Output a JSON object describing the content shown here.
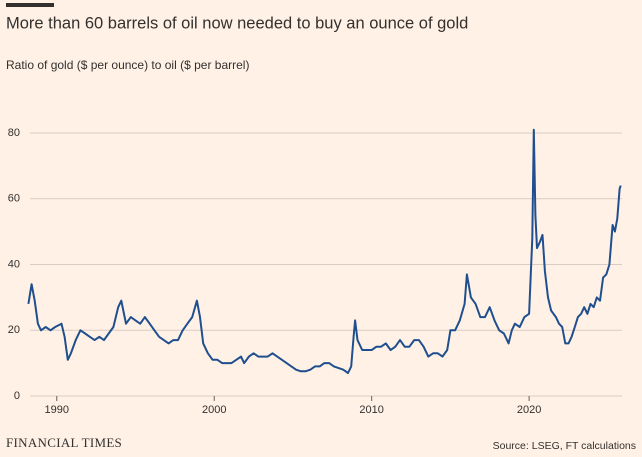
{
  "chart_data": {
    "type": "line",
    "title": "More than 60 barrels of oil now needed to buy an ounce of gold",
    "subtitle": "Ratio of gold ($ per ounce) to oil ($ per barrel)",
    "color": "#1f4f8f",
    "x": [
      1988.2,
      1988.4,
      1988.6,
      1988.8,
      1989.0,
      1989.3,
      1989.6,
      1989.9,
      1990.3,
      1990.5,
      1990.7,
      1990.9,
      1991.2,
      1991.5,
      1991.8,
      1992.1,
      1992.4,
      1992.7,
      1993.0,
      1993.3,
      1993.6,
      1993.9,
      1994.1,
      1994.4,
      1994.7,
      1995.0,
      1995.3,
      1995.6,
      1995.9,
      1996.2,
      1996.5,
      1996.8,
      1997.1,
      1997.4,
      1997.7,
      1998.0,
      1998.3,
      1998.6,
      1998.9,
      1999.1,
      1999.3,
      1999.6,
      1999.9,
      2000.2,
      2000.5,
      2000.8,
      2001.1,
      2001.4,
      2001.7,
      2001.9,
      2002.2,
      2002.5,
      2002.8,
      2003.1,
      2003.4,
      2003.7,
      2004.0,
      2004.3,
      2004.6,
      2004.9,
      2005.2,
      2005.5,
      2005.8,
      2006.1,
      2006.4,
      2006.7,
      2007.0,
      2007.3,
      2007.6,
      2007.9,
      2008.2,
      2008.5,
      2008.7,
      2008.85,
      2008.95,
      2009.1,
      2009.4,
      2009.7,
      2010.0,
      2010.3,
      2010.6,
      2010.9,
      2011.2,
      2011.5,
      2011.8,
      2012.1,
      2012.4,
      2012.7,
      2013.0,
      2013.3,
      2013.6,
      2013.9,
      2014.2,
      2014.5,
      2014.8,
      2015.0,
      2015.3,
      2015.6,
      2015.9,
      2016.05,
      2016.3,
      2016.6,
      2016.9,
      2017.2,
      2017.5,
      2017.8,
      2018.1,
      2018.4,
      2018.7,
      2018.9,
      2019.1,
      2019.4,
      2019.7,
      2020.0,
      2020.2,
      2020.3,
      2020.4,
      2020.5,
      2020.7,
      2020.85,
      2021.0,
      2021.2,
      2021.4,
      2021.7,
      2021.9,
      2022.1,
      2022.3,
      2022.5,
      2022.7,
      2022.9,
      2023.1,
      2023.3,
      2023.5,
      2023.7,
      2023.9,
      2024.1,
      2024.3,
      2024.5,
      2024.7,
      2024.9,
      2025.1,
      2025.3,
      2025.45,
      2025.6,
      2025.75,
      2025.82
    ],
    "values": [
      28,
      34,
      29,
      22,
      20,
      21,
      20,
      21,
      22,
      18,
      11,
      13,
      17,
      20,
      19,
      18,
      17,
      18,
      17,
      19,
      21,
      27,
      29,
      22,
      24,
      23,
      22,
      24,
      22,
      20,
      18,
      17,
      16,
      17,
      17,
      20,
      22,
      24,
      29,
      24,
      16,
      13,
      11,
      11,
      10,
      10,
      10,
      11,
      12,
      10,
      12,
      13,
      12,
      12,
      12,
      13,
      12,
      11,
      10,
      9,
      8,
      7.5,
      7.5,
      8,
      9,
      9,
      10,
      10,
      9,
      8.5,
      8,
      7,
      9,
      18,
      23,
      17,
      14,
      14,
      14,
      15,
      15,
      16,
      14,
      15,
      17,
      15,
      15,
      17,
      17,
      15,
      12,
      13,
      13,
      12,
      14,
      20,
      20,
      23,
      28,
      37,
      30,
      28,
      24,
      24,
      27,
      23,
      20,
      19,
      16,
      20,
      22,
      21,
      24,
      25,
      48,
      81,
      55,
      45,
      47,
      49,
      38,
      30,
      26,
      24,
      22,
      21,
      16,
      16,
      18,
      21,
      24,
      25,
      27,
      25,
      28,
      27,
      30,
      29,
      36,
      37,
      40,
      52,
      50,
      54,
      63,
      64
    ],
    "xlim": [
      1988.3,
      2025.9
    ],
    "xticks": [
      1990,
      2000,
      2010,
      2020
    ],
    "ylim": [
      0,
      80
    ],
    "yticks": [
      0,
      20,
      40,
      60,
      80
    ],
    "grid": true
  },
  "footer": {
    "brand": "FINANCIAL TIMES",
    "source": "Source: LSEG, FT calculations"
  }
}
